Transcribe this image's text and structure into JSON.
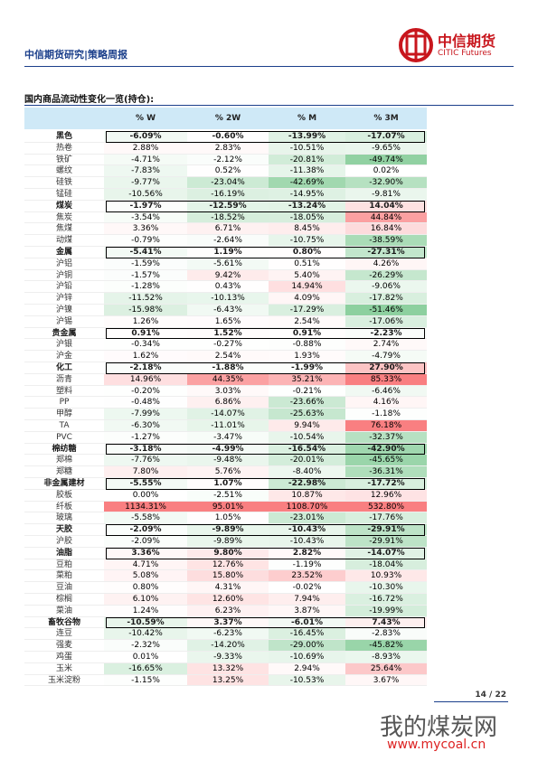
{
  "header": {
    "title": "中信期货研究|策略周报",
    "logo_cn": "中信期货",
    "logo_en": "CITIC Futures"
  },
  "table": {
    "title": "国内商品流动性变化一览(持仓):",
    "columns": [
      "% W",
      "% 2W",
      "% M",
      "% 3M"
    ],
    "rows": [
      {
        "cells": [
          "黑色",
          "-6.09%",
          "-0.60%",
          "-13.99%",
          "-17.07%"
        ],
        "group": true
      },
      {
        "cells": [
          "热卷",
          "2.88%",
          "2.83%",
          "-10.51%",
          "-9.65%"
        ]
      },
      {
        "cells": [
          "铁矿",
          "-4.71%",
          "-2.12%",
          "-20.81%",
          "-49.74%"
        ]
      },
      {
        "cells": [
          "螺纹",
          "-7.83%",
          "0.52%",
          "-11.38%",
          "0.02%"
        ]
      },
      {
        "cells": [
          "硅铁",
          "-9.77%",
          "-23.04%",
          "-42.69%",
          "-32.90%"
        ]
      },
      {
        "cells": [
          "锰硅",
          "-10.56%",
          "-16.19%",
          "-14.95%",
          "-9.81%"
        ]
      },
      {
        "cells": [
          "煤炭",
          "-1.97%",
          "-12.59%",
          "-13.24%",
          "14.04%"
        ],
        "group": true
      },
      {
        "cells": [
          "焦炭",
          "-3.54%",
          "-18.52%",
          "-18.05%",
          "44.84%"
        ]
      },
      {
        "cells": [
          "焦煤",
          "3.36%",
          "6.71%",
          "8.45%",
          "16.84%"
        ]
      },
      {
        "cells": [
          "动煤",
          "-0.79%",
          "-2.64%",
          "-10.75%",
          "-38.59%"
        ]
      },
      {
        "cells": [
          "金属",
          "-5.41%",
          "1.19%",
          "0.80%",
          "-27.31%"
        ],
        "group": true
      },
      {
        "cells": [
          "沪铝",
          "-1.59%",
          "-5.61%",
          "0.51%",
          "4.26%"
        ]
      },
      {
        "cells": [
          "沪铜",
          "-1.57%",
          "9.42%",
          "5.40%",
          "-26.29%"
        ]
      },
      {
        "cells": [
          "沪铅",
          "-1.28%",
          "0.43%",
          "14.94%",
          "-9.06%"
        ]
      },
      {
        "cells": [
          "沪锌",
          "-11.52%",
          "-10.13%",
          "4.09%",
          "-17.82%"
        ]
      },
      {
        "cells": [
          "沪镍",
          "-15.98%",
          "-6.43%",
          "-17.29%",
          "-51.46%"
        ]
      },
      {
        "cells": [
          "沪锡",
          "1.26%",
          "1.65%",
          "2.54%",
          "-17.06%"
        ]
      },
      {
        "cells": [
          "贵金属",
          "0.91%",
          "1.52%",
          "0.91%",
          "-2.23%"
        ],
        "group": true
      },
      {
        "cells": [
          "沪银",
          "-0.34%",
          "-0.27%",
          "-0.88%",
          "2.74%"
        ]
      },
      {
        "cells": [
          "沪金",
          "1.62%",
          "2.54%",
          "1.93%",
          "-4.79%"
        ]
      },
      {
        "cells": [
          "化工",
          "-2.18%",
          "-1.88%",
          "-1.99%",
          "27.90%"
        ],
        "group": true
      },
      {
        "cells": [
          "沥青",
          "14.96%",
          "44.35%",
          "35.21%",
          "85.33%"
        ]
      },
      {
        "cells": [
          "塑料",
          "-0.20%",
          "3.03%",
          "-0.21%",
          "-6.46%"
        ]
      },
      {
        "cells": [
          "PP",
          "-0.48%",
          "6.86%",
          "-23.66%",
          "4.16%"
        ]
      },
      {
        "cells": [
          "甲醇",
          "-7.99%",
          "-14.07%",
          "-25.63%",
          "-1.18%"
        ]
      },
      {
        "cells": [
          "TA",
          "-6.30%",
          "-11.01%",
          "9.94%",
          "76.18%"
        ]
      },
      {
        "cells": [
          "PVC",
          "-1.27%",
          "-3.47%",
          "-10.54%",
          "-32.37%"
        ]
      },
      {
        "cells": [
          "棉纺糖",
          "-3.18%",
          "-4.99%",
          "-16.54%",
          "-42.90%"
        ],
        "group": true
      },
      {
        "cells": [
          "郑棉",
          "-7.76%",
          "-9.48%",
          "-20.01%",
          "-45.65%"
        ]
      },
      {
        "cells": [
          "郑糖",
          "7.80%",
          "5.76%",
          "-8.40%",
          "-36.31%"
        ]
      },
      {
        "cells": [
          "非金属建材",
          "-5.55%",
          "1.07%",
          "-22.98%",
          "-17.72%"
        ],
        "group": true
      },
      {
        "cells": [
          "胶板",
          "0.00%",
          "-2.51%",
          "10.87%",
          "12.96%"
        ]
      },
      {
        "cells": [
          "纤板",
          "1134.31%",
          "95.01%",
          "1108.70%",
          "532.80%"
        ]
      },
      {
        "cells": [
          "玻璃",
          "-5.58%",
          "1.05%",
          "-23.01%",
          "-17.76%"
        ]
      },
      {
        "cells": [
          "天胶",
          "-2.09%",
          "-9.89%",
          "-10.43%",
          "-29.91%"
        ],
        "group": true
      },
      {
        "cells": [
          "沪胶",
          "-2.09%",
          "-9.89%",
          "-10.43%",
          "-29.91%"
        ]
      },
      {
        "cells": [
          "油脂",
          "3.36%",
          "9.80%",
          "2.82%",
          "-14.07%"
        ],
        "group": true
      },
      {
        "cells": [
          "豆粕",
          "4.71%",
          "12.76%",
          "-1.19%",
          "-18.04%"
        ]
      },
      {
        "cells": [
          "菜粕",
          "5.08%",
          "15.80%",
          "23.52%",
          "10.93%"
        ]
      },
      {
        "cells": [
          "豆油",
          "0.80%",
          "4.31%",
          "-0.02%",
          "-10.30%"
        ]
      },
      {
        "cells": [
          "棕榈",
          "6.10%",
          "12.60%",
          "7.94%",
          "-16.72%"
        ]
      },
      {
        "cells": [
          "菜油",
          "1.24%",
          "6.23%",
          "3.87%",
          "-19.99%"
        ]
      },
      {
        "cells": [
          "畜牧谷物",
          "-10.59%",
          "3.37%",
          "-6.01%",
          "7.43%"
        ],
        "group": true
      },
      {
        "cells": [
          "连豆",
          "-10.42%",
          "-6.23%",
          "-16.45%",
          "-2.83%"
        ]
      },
      {
        "cells": [
          "强麦",
          "-2.32%",
          "-14.20%",
          "-29.00%",
          "-45.82%"
        ]
      },
      {
        "cells": [
          "鸡蛋",
          "0.01%",
          "-9.33%",
          "-10.69%",
          "-8.93%"
        ]
      },
      {
        "cells": [
          "玉米",
          "-16.65%",
          "13.32%",
          "2.94%",
          "25.64%"
        ]
      },
      {
        "cells": [
          "玉米淀粉",
          "-1.15%",
          "13.25%",
          "-10.53%",
          "3.67%"
        ]
      }
    ]
  },
  "footer": {
    "page": "14 / 22",
    "watermark": "我的煤炭网",
    "watermark_url": "www.mycoal.cn"
  }
}
